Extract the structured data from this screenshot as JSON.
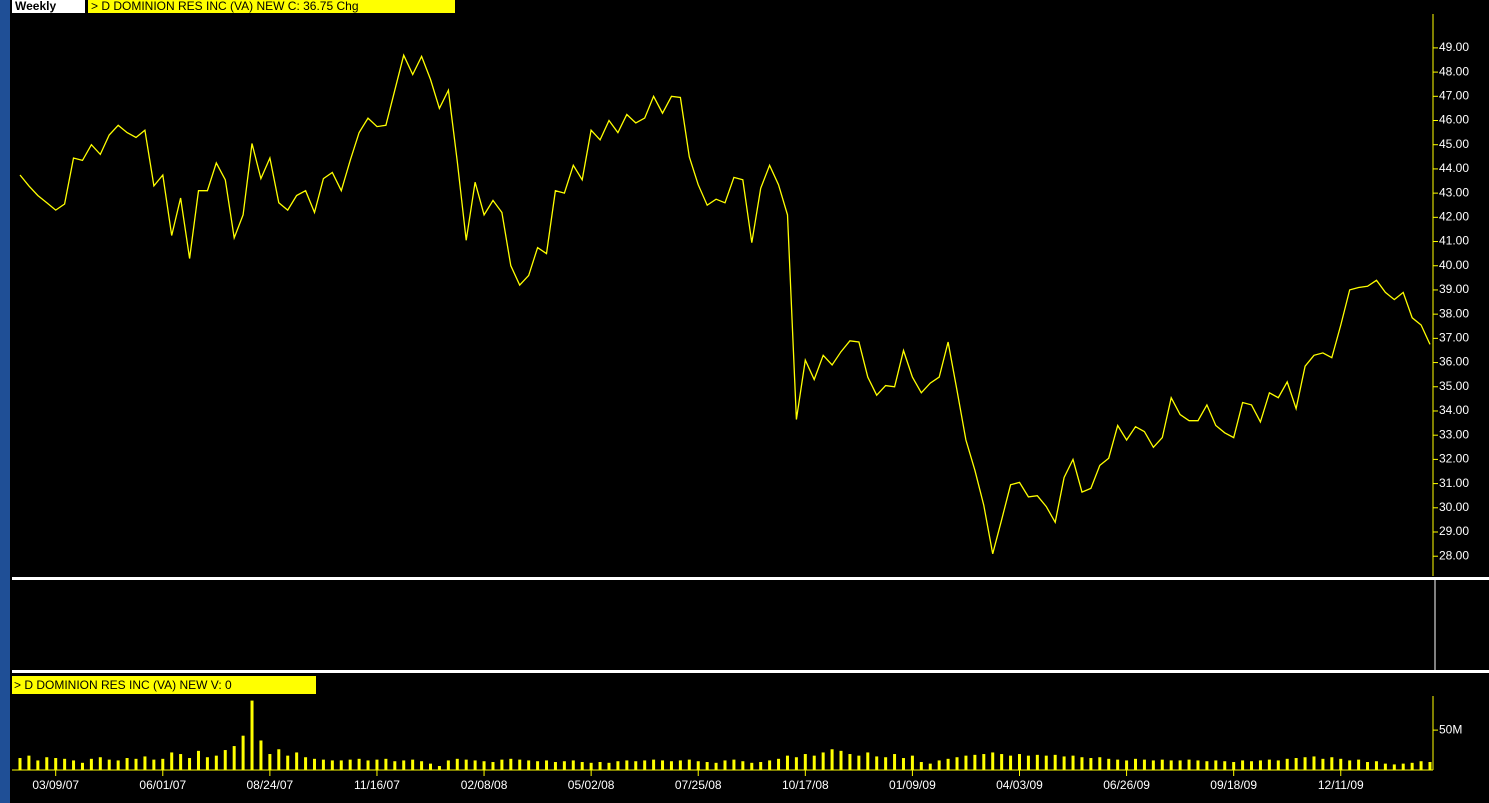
{
  "chart_data": [
    {
      "type": "line",
      "period": "Weekly",
      "title": "> D  DOMINION RES INC (VA) NEW  C: 36.75  Chg",
      "color": "#ffff00",
      "ylim": [
        27.1,
        50.4
      ],
      "yticks": [
        {
          "value": 28,
          "label": "28.00"
        },
        {
          "value": 29,
          "label": "29.00"
        },
        {
          "value": 30,
          "label": "30.00"
        },
        {
          "value": 31,
          "label": "31.00"
        },
        {
          "value": 32,
          "label": "32.00"
        },
        {
          "value": 33,
          "label": "33.00"
        },
        {
          "value": 34,
          "label": "34.00"
        },
        {
          "value": 35,
          "label": "35.00"
        },
        {
          "value": 36,
          "label": "36.00"
        },
        {
          "value": 37,
          "label": "37.00"
        },
        {
          "value": 38,
          "label": "38.00"
        },
        {
          "value": 39,
          "label": "39.00"
        },
        {
          "value": 40,
          "label": "40.00"
        },
        {
          "value": 41,
          "label": "41.00"
        },
        {
          "value": 42,
          "label": "42.00"
        },
        {
          "value": 43,
          "label": "43.00"
        },
        {
          "value": 44,
          "label": "44.00"
        },
        {
          "value": 45,
          "label": "45.00"
        },
        {
          "value": 46,
          "label": "46.00"
        },
        {
          "value": 47,
          "label": "47.00"
        },
        {
          "value": 48,
          "label": "48.00"
        },
        {
          "value": 49,
          "label": "49.00"
        }
      ],
      "values": [
        43.75,
        43.3,
        42.9,
        42.6,
        42.3,
        42.55,
        44.45,
        44.35,
        45.0,
        44.6,
        45.4,
        45.8,
        45.5,
        45.3,
        45.6,
        43.3,
        43.75,
        41.25,
        42.8,
        40.3,
        43.1,
        43.1,
        44.25,
        43.55,
        41.15,
        42.1,
        45.05,
        43.6,
        44.45,
        42.6,
        42.3,
        42.9,
        43.1,
        42.2,
        43.6,
        43.85,
        43.1,
        44.35,
        45.5,
        46.1,
        45.75,
        45.8,
        47.25,
        48.7,
        47.9,
        48.65,
        47.7,
        46.5,
        47.25,
        44.3,
        41.05,
        43.45,
        42.1,
        42.7,
        42.2,
        40.0,
        39.2,
        39.6,
        40.75,
        40.5,
        43.1,
        43.0,
        44.15,
        43.55,
        45.6,
        45.2,
        46.0,
        45.5,
        46.25,
        45.9,
        46.1,
        47.0,
        46.3,
        47.0,
        46.95,
        44.5,
        43.35,
        42.5,
        42.75,
        42.6,
        43.65,
        43.55,
        40.95,
        43.2,
        44.15,
        43.35,
        42.1,
        33.65,
        36.1,
        35.3,
        36.3,
        35.9,
        36.45,
        36.9,
        36.85,
        35.4,
        34.65,
        35.05,
        35.0,
        36.5,
        35.4,
        34.75,
        35.15,
        35.4,
        36.85,
        34.85,
        32.8,
        31.55,
        30.1,
        28.1,
        29.5,
        30.95,
        31.05,
        30.45,
        30.5,
        30.05,
        29.4,
        31.25,
        32.0,
        30.65,
        30.8,
        31.75,
        32.05,
        33.4,
        32.8,
        33.35,
        33.15,
        32.5,
        32.9,
        34.55,
        33.85,
        33.6,
        33.6,
        34.25,
        33.4,
        33.1,
        32.9,
        34.35,
        34.25,
        33.55,
        34.75,
        34.55,
        35.2,
        34.1,
        35.85,
        36.3,
        36.4,
        36.2,
        37.55,
        39.0,
        39.1,
        39.15,
        39.4,
        38.9,
        38.6,
        38.9,
        37.85,
        37.55,
        36.75
      ]
    },
    {
      "type": "bar",
      "title": "> D  DOMINION RES INC (VA) NEW  V: 0",
      "color": "#ffff00",
      "ylim": [
        0,
        94
      ],
      "yticks": [
        {
          "value": 50,
          "label": "50M"
        }
      ],
      "categories": [
        null,
        null,
        null,
        null,
        "03/09/07",
        null,
        null,
        null,
        null,
        null,
        null,
        null,
        null,
        null,
        null,
        null,
        "06/01/07",
        null,
        null,
        null,
        null,
        null,
        null,
        null,
        null,
        null,
        null,
        null,
        "08/24/07",
        null,
        null,
        null,
        null,
        null,
        null,
        null,
        null,
        null,
        null,
        null,
        "11/16/07",
        null,
        null,
        null,
        null,
        null,
        null,
        null,
        null,
        null,
        null,
        null,
        "02/08/08",
        null,
        null,
        null,
        null,
        null,
        null,
        null,
        null,
        null,
        null,
        null,
        "05/02/08",
        null,
        null,
        null,
        null,
        null,
        null,
        null,
        null,
        null,
        null,
        null,
        "07/25/08",
        null,
        null,
        null,
        null,
        null,
        null,
        null,
        null,
        null,
        null,
        null,
        "10/17/08",
        null,
        null,
        null,
        null,
        null,
        null,
        null,
        null,
        null,
        null,
        null,
        "01/09/09",
        null,
        null,
        null,
        null,
        null,
        null,
        null,
        null,
        null,
        null,
        null,
        "04/03/09",
        null,
        null,
        null,
        null,
        null,
        null,
        null,
        null,
        null,
        null,
        null,
        "06/26/09",
        null,
        null,
        null,
        null,
        null,
        null,
        null,
        null,
        null,
        null,
        null,
        "09/18/09",
        null,
        null,
        null,
        null,
        null,
        null,
        null,
        null,
        null,
        null,
        null,
        "12/11/09",
        null,
        null,
        null,
        null,
        null,
        null,
        null,
        null,
        null,
        null
      ],
      "values": [
        15,
        18,
        12,
        16,
        15,
        14,
        12,
        9,
        14,
        16,
        13,
        12,
        15,
        14,
        17,
        13,
        14,
        22,
        20,
        15,
        24,
        16,
        18,
        25,
        30,
        43,
        87,
        37,
        20,
        26,
        18,
        22,
        16,
        14,
        13,
        12,
        12,
        13,
        14,
        12,
        13,
        14,
        11,
        12,
        13,
        11,
        8,
        5,
        12,
        14,
        13,
        12,
        11,
        10,
        13,
        14,
        13,
        12,
        11,
        12,
        10,
        11,
        12,
        10,
        9,
        10,
        9,
        11,
        12,
        11,
        12,
        13,
        12,
        11,
        12,
        13,
        11,
        10,
        9,
        12,
        13,
        11,
        9,
        10,
        12,
        14,
        18,
        16,
        20,
        18,
        22,
        26,
        24,
        20,
        18,
        22,
        17,
        16,
        20,
        15,
        18,
        10,
        8,
        12,
        14,
        16,
        18,
        19,
        20,
        22,
        20,
        18,
        20,
        18,
        19,
        18,
        19,
        17,
        18,
        16,
        15,
        16,
        14,
        13,
        12,
        14,
        13,
        12,
        13,
        12,
        12,
        13,
        12,
        11,
        12,
        11,
        10,
        12,
        11,
        12,
        13,
        12,
        14,
        15,
        16,
        17,
        14,
        16,
        14,
        12,
        13,
        10,
        11,
        8,
        7,
        8,
        9,
        11,
        10
      ]
    }
  ]
}
